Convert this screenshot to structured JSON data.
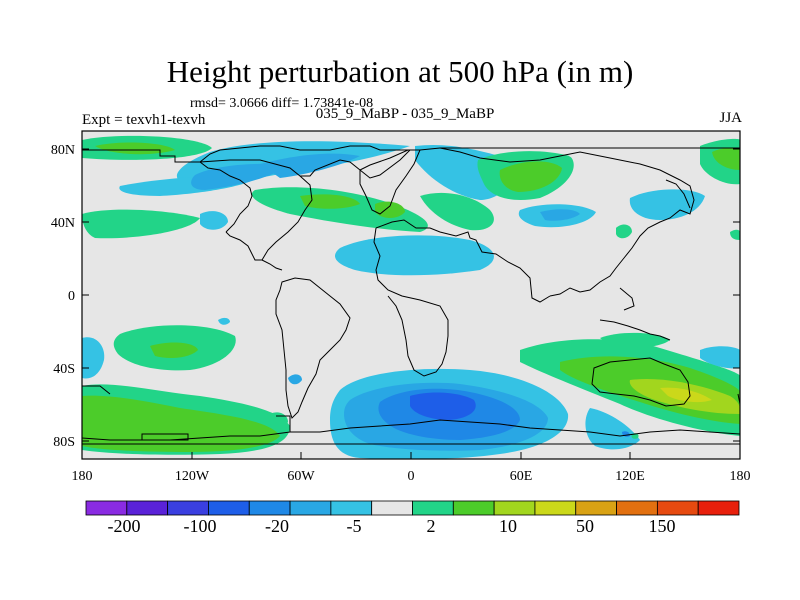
{
  "map": {
    "title": "Height perturbation at 500 hPa (in m)",
    "subtitle": "rmsd= 3.0666 diff= 1.73841e-08",
    "left_string": "Expt = texvh1-texvh",
    "center_string": "035_9_MaBP - 035_9_MaBP",
    "right_string": "JJA",
    "projection": "cylindrical equidistant",
    "lon_range": [
      -180,
      180
    ],
    "lat_range": [
      -90,
      90
    ],
    "lon_tick_labels": [
      "180",
      "120W",
      "60W",
      "0",
      "60E",
      "120E",
      "180"
    ],
    "lat_tick_labels": [
      "80N",
      "40N",
      "0",
      "40S",
      "80S"
    ]
  },
  "colorbar": {
    "colors": [
      "#8a2be2",
      "#5a22d8",
      "#3a3fe0",
      "#1e5ee8",
      "#1f88e6",
      "#29a7e4",
      "#35c2e4",
      "#e6e6e6",
      "#22d488",
      "#4ccc2a",
      "#a2d61e",
      "#cbd81a",
      "#d9a214",
      "#e27010",
      "#e64a10",
      "#e8200c"
    ],
    "labels": [
      "-200",
      "-100",
      "-20",
      "-5",
      "2",
      "10",
      "50",
      "150"
    ]
  },
  "colors": {
    "background": "#e6e6e6",
    "coastline": "#000000"
  }
}
